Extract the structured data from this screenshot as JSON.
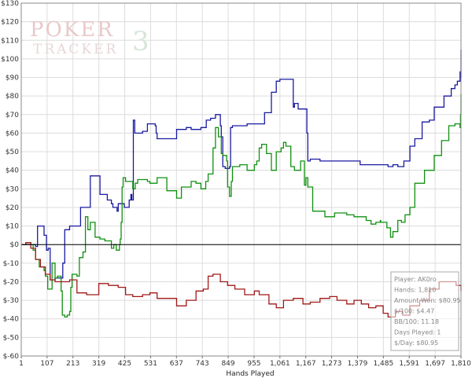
{
  "watermark": {
    "brand_top": "POKER",
    "brand_num": "3",
    "brand_bottom": "TRACKER"
  },
  "chart_data": {
    "type": "line",
    "xlabel": "Hands Played",
    "ylabel": "",
    "xlim": [
      1,
      1810
    ],
    "ylim": [
      -60,
      130
    ],
    "grid": true,
    "x_ticks": [
      "1",
      "107",
      "213",
      "319",
      "425",
      "531",
      "637",
      "743",
      "849",
      "955",
      "1,061",
      "1,167",
      "1,273",
      "1,379",
      "1,485",
      "1,591",
      "1,697",
      "1,810"
    ],
    "y_ticks": [
      "$130",
      "$120",
      "$110",
      "$100",
      "$90",
      "$80",
      "$70",
      "$60",
      "$50",
      "$40",
      "$30",
      "$20",
      "$10",
      "$0",
      "$-10",
      "$-20",
      "$-30",
      "$-40",
      "$-50",
      "$-60"
    ],
    "series": [
      {
        "color": "#1a1aa0",
        "x": [
          1,
          60,
          68,
          70,
          95,
          100,
          105,
          112,
          120,
          125,
          140,
          165,
          172,
          180,
          200,
          220,
          245,
          285,
          325,
          355,
          372,
          378,
          382,
          395,
          400,
          425,
          430,
          445,
          452,
          456,
          460,
          462,
          468,
          500,
          520,
          552,
          556,
          560,
          570,
          640,
          680,
          700,
          740,
          762,
          780,
          800,
          812,
          820,
          824,
          830,
          840,
          858,
          862,
          870,
          890,
          930,
          960,
          1002,
          1010,
          1030,
          1050,
          1065,
          1075,
          1120,
          1125,
          1140,
          1160,
          1176,
          1180,
          1190,
          1230,
          1270,
          1330,
          1395,
          1460,
          1510,
          1530,
          1550,
          1560,
          1575,
          1600,
          1620,
          1650,
          1680,
          1700,
          1740,
          1770,
          1785,
          1795,
          1806,
          1808,
          1810
        ],
        "y": [
          0,
          -1,
          10,
          10,
          5,
          5,
          -3,
          -2,
          -19,
          -19,
          -18,
          -18,
          -10,
          8,
          10,
          10,
          20,
          37,
          27,
          24,
          22,
          20,
          20,
          18,
          22,
          20,
          20,
          24,
          27,
          24,
          24,
          67,
          60,
          61,
          65,
          64,
          60,
          57,
          57,
          62,
          63,
          62,
          63,
          67,
          68,
          70,
          70,
          64,
          58,
          42,
          41,
          42,
          63,
          64,
          64,
          65,
          65,
          71,
          71,
          82,
          88,
          89,
          89,
          74,
          76,
          73,
          73,
          60,
          45,
          46,
          45,
          45,
          45,
          43,
          43,
          42,
          43,
          42,
          42,
          45,
          53,
          57,
          66,
          67,
          74,
          80,
          84,
          86,
          88,
          93,
          90,
          105
        ]
      },
      {
        "color": "#109010",
        "x": [
          1,
          20,
          40,
          50,
          60,
          75,
          95,
          100,
          110,
          128,
          140,
          150,
          165,
          170,
          175,
          180,
          190,
          200,
          205,
          210,
          230,
          240,
          255,
          265,
          275,
          285,
          305,
          325,
          345,
          360,
          372,
          382,
          392,
          405,
          408,
          412,
          416,
          420,
          430,
          460,
          470,
          480,
          520,
          530,
          560,
          600,
          640,
          660,
          680,
          700,
          720,
          740,
          760,
          770,
          790,
          800,
          812,
          824,
          830,
          846,
          850,
          858,
          865,
          870,
          900,
          930,
          960,
          970,
          980,
          990,
          1010,
          1030,
          1050,
          1070,
          1080,
          1090,
          1102,
          1110,
          1125,
          1150,
          1166,
          1172,
          1180,
          1200,
          1250,
          1290,
          1340,
          1370,
          1400,
          1420,
          1440,
          1460,
          1478,
          1480,
          1505,
          1520,
          1530,
          1550,
          1565,
          1580,
          1600,
          1620,
          1660,
          1700,
          1730,
          1760,
          1785,
          1800,
          1806,
          1808,
          1810
        ],
        "y": [
          0,
          1,
          0,
          -3,
          -8,
          -12,
          -14,
          -17,
          -24,
          -10,
          -18,
          -17,
          -25,
          -38,
          -38,
          -39,
          -38,
          -36,
          -23,
          -16,
          -17,
          -7,
          -4,
          15,
          8,
          12,
          4,
          3,
          2,
          2,
          -2,
          0,
          -3,
          0,
          3,
          12,
          31,
          36,
          34,
          30,
          33,
          35,
          34,
          33,
          36,
          29,
          25,
          31,
          31,
          34,
          33,
          30,
          34,
          38,
          52,
          63,
          58,
          49,
          48,
          45,
          31,
          26,
          34,
          42,
          43,
          40,
          43,
          45,
          52,
          54,
          49,
          40,
          50,
          52,
          55,
          53,
          53,
          42,
          40,
          45,
          32,
          36,
          31,
          18,
          15,
          17,
          16,
          15,
          15,
          13,
          11,
          12,
          13,
          12,
          9,
          4,
          7,
          13,
          12,
          16,
          20,
          33,
          40,
          48,
          56,
          64,
          65,
          65,
          63,
          70,
          81
        ]
      },
      {
        "color": "#a01818",
        "x": [
          1,
          20,
          40,
          60,
          80,
          100,
          120,
          140,
          160,
          180,
          200,
          230,
          270,
          320,
          360,
          400,
          430,
          460,
          500,
          530,
          560,
          590,
          640,
          680,
          720,
          750,
          770,
          790,
          820,
          850,
          880,
          920,
          960,
          980,
          1020,
          1050,
          1080,
          1120,
          1160,
          1190,
          1230,
          1270,
          1300,
          1340,
          1370,
          1400,
          1430,
          1460,
          1490,
          1510,
          1540,
          1570,
          1600,
          1640,
          1680,
          1720,
          1760,
          1790,
          1810
        ],
        "y": [
          0,
          1,
          -2,
          -8,
          -12,
          -16,
          -19,
          -20,
          -20,
          -20,
          -19,
          -26,
          -27,
          -21,
          -22,
          -23,
          -27,
          -28,
          -27,
          -26,
          -29,
          -29,
          -33,
          -30,
          -25,
          -24,
          -17,
          -16,
          -20,
          -22,
          -24,
          -27,
          -25,
          -27,
          -32,
          -34,
          -30,
          -29,
          -32,
          -31,
          -29,
          -28,
          -30,
          -32,
          -30,
          -32,
          -34,
          -33,
          -37,
          -39,
          -36,
          -38,
          -33,
          -30,
          -24,
          -20,
          -20,
          -22,
          -25
        ]
      }
    ],
    "annotations": [
      "Player: AK0ro",
      "Hands: 1,810",
      "Amount Won: $80.95",
      "$/100: $4.47",
      "BB/100: 11.18",
      "Days Played: 1",
      "$/Day: $80.95"
    ]
  }
}
